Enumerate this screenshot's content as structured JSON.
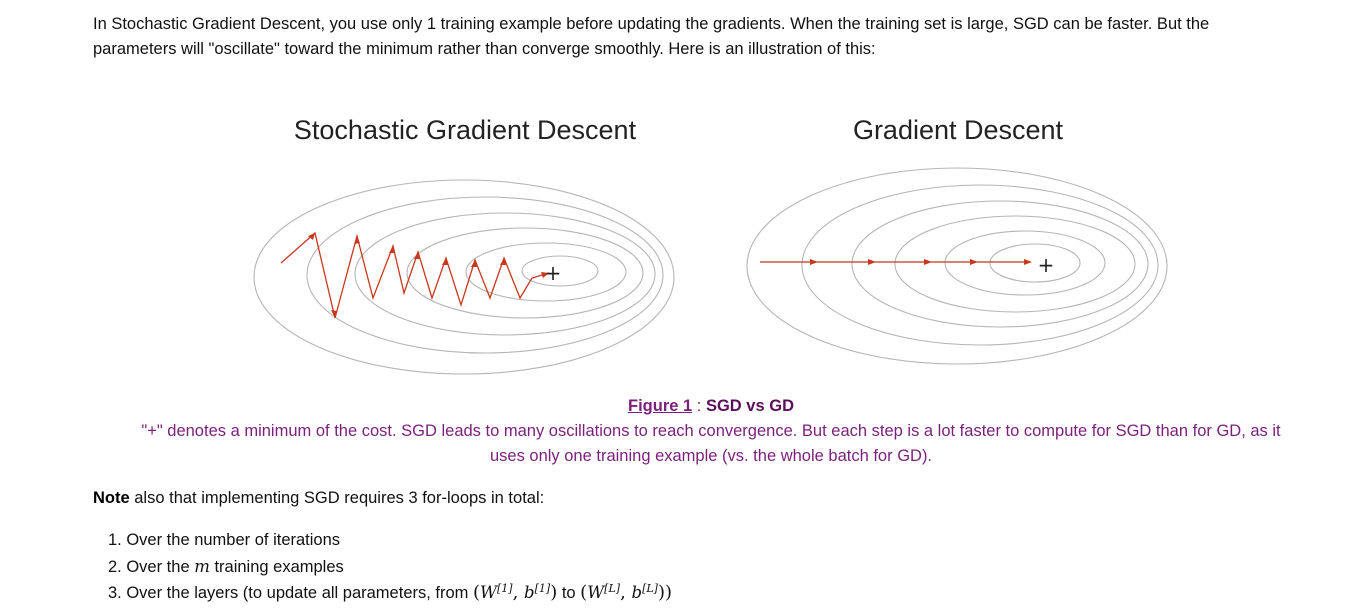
{
  "intro": {
    "line1": "In Stochastic Gradient Descent, you use only 1 training example before updating the gradients. When the training set is large, SGD can be faster. But the",
    "line2": "parameters will \"oscillate\" toward the minimum rather than converge smoothly. Here is an illustration of this:"
  },
  "figure": {
    "left_title": "Stochastic Gradient Descent",
    "right_title": "Gradient Descent",
    "min_marker": "+",
    "contour_color": "#b5b5b5",
    "path_color": "#c8381f"
  },
  "caption": {
    "link": "Figure 1",
    "separator": " : ",
    "title": "SGD vs GD",
    "body_line1": "\"+\" denotes a minimum of the cost. SGD leads to many oscillations to reach convergence. But each step is a lot faster to compute for SGD than for GD, as it",
    "body_line2": "uses only one training example (vs. the whole batch for GD).",
    "color": "#7a1f7a"
  },
  "note": {
    "bold": "Note",
    "rest": " also that implementing SGD requires 3 for-loops in total:"
  },
  "loops": {
    "item1": "1. Over the number of iterations",
    "item2_prefix": "2. Over the ",
    "item2_var": "m",
    "item2_suffix": " training examples",
    "item3_prefix": "3. Over the layers (to update all parameters, from ",
    "item3_mid": " to ",
    "W": "W",
    "b": "b",
    "sup_first": "[1]",
    "sup_last": "[L]"
  }
}
